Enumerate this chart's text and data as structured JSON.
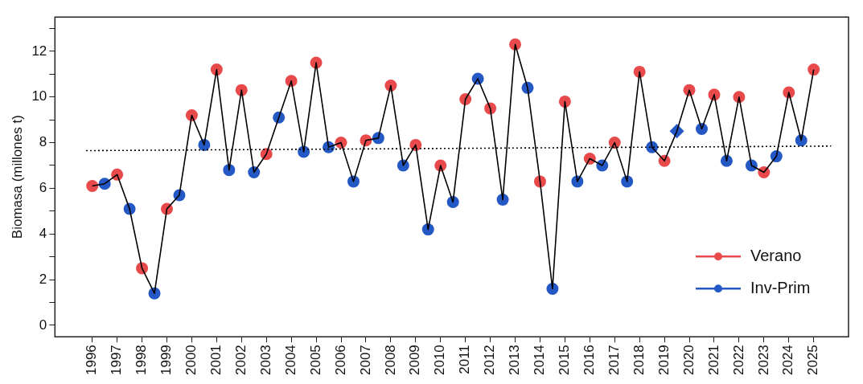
{
  "chart_data": {
    "type": "line",
    "ylabel": "Biomasa (millones t)",
    "xlim": [
      1994.5,
      2026.4
    ],
    "ylim": [
      -0.5,
      13.5
    ],
    "xticks": [
      1996,
      1997,
      1998,
      1999,
      2000,
      2001,
      2002,
      2003,
      2004,
      2005,
      2006,
      2007,
      2008,
      2009,
      2010,
      2011,
      2012,
      2013,
      2014,
      2015,
      2016,
      2017,
      2018,
      2019,
      2020,
      2021,
      2022,
      2023,
      2024,
      2025
    ],
    "yticks": [
      0,
      {
        "value": 1,
        "label": null
      },
      2,
      {
        "value": 3,
        "label": null
      },
      4,
      {
        "value": 5,
        "label": null
      },
      6,
      {
        "value": 7,
        "label": null
      },
      8,
      {
        "value": 9,
        "label": null
      },
      10,
      {
        "value": 11,
        "label": null
      },
      12,
      {
        "value": 13,
        "label": null
      }
    ],
    "grid": false,
    "legend": "bottom right",
    "series": [
      {
        "type": "line",
        "color": "#000000",
        "marker": "none",
        "line_style": "solid",
        "x": [
          1996,
          1996.5,
          1997,
          1997.5,
          1998,
          1998.5,
          1999,
          1999.5,
          2000,
          2000.5,
          2001,
          2001.5,
          2002,
          2002.5,
          2003,
          2003.5,
          2004,
          2004.5,
          2005,
          2005.5,
          2006,
          2006.5,
          2007,
          2007.5,
          2008,
          2008.5,
          2009,
          2009.5,
          2010,
          2010.5,
          2011,
          2011.5,
          2012,
          2012.5,
          2013,
          2013.5,
          2014,
          2014.5,
          2015,
          2015.5,
          2016,
          2016.5,
          2017,
          2017.5,
          2018,
          2018.5,
          2019,
          2019.5,
          2020,
          2020.5,
          2021,
          2021.5,
          2022,
          2022.5,
          2023,
          2023.5,
          2024,
          2024.5,
          2025
        ],
        "values": [
          6.1,
          6.2,
          6.6,
          5.1,
          2.5,
          1.4,
          5.1,
          5.7,
          9.2,
          7.9,
          11.2,
          6.8,
          10.3,
          6.7,
          7.5,
          9.1,
          10.7,
          7.6,
          11.5,
          7.8,
          8.0,
          6.3,
          8.1,
          8.2,
          10.5,
          7.0,
          7.9,
          4.2,
          7.0,
          5.4,
          9.9,
          10.8,
          9.5,
          5.5,
          12.3,
          10.4,
          6.3,
          1.6,
          9.8,
          6.3,
          7.3,
          7.0,
          8.0,
          6.3,
          11.1,
          7.8,
          7.2,
          8.5,
          10.3,
          8.6,
          10.1,
          7.2,
          10.0,
          7.0,
          6.7,
          7.4,
          10.2,
          8.1,
          11.2
        ]
      },
      {
        "type": "line",
        "color": "#000000",
        "marker": "none",
        "line_style": "dotted",
        "x": [
          1995.75,
          2025.7
        ],
        "values": [
          7.65,
          7.85
        ]
      },
      {
        "type": "scatter",
        "name": "Verano",
        "color": "#e84a4c",
        "marker": "circle",
        "x": [
          1996,
          1997,
          1998,
          1999,
          2000,
          2001,
          2002,
          2003,
          2004,
          2005,
          2006,
          2007,
          2008,
          2009,
          2010,
          2011,
          2012,
          2013,
          2014,
          2015,
          2016,
          2017,
          2018,
          2019,
          2020,
          2021,
          2022,
          2023,
          2024,
          2025
        ],
        "values": [
          6.1,
          6.6,
          2.5,
          5.1,
          9.2,
          11.2,
          10.3,
          7.5,
          10.7,
          11.5,
          8.0,
          8.1,
          10.5,
          7.9,
          7.0,
          9.9,
          9.5,
          12.3,
          6.3,
          9.8,
          7.3,
          8.0,
          11.1,
          7.2,
          10.3,
          10.1,
          10.0,
          6.7,
          10.2,
          11.2
        ]
      },
      {
        "type": "scatter",
        "name": "Inv-Prim",
        "color": "#2458c4",
        "marker": "circle",
        "x": [
          1996.5,
          1997.5,
          1998.5,
          1999.5,
          2000.5,
          2001.5,
          2002.5,
          2003.5,
          2004.5,
          2005.5,
          2006.5,
          2007.5,
          2008.5,
          2009.5,
          2010.5,
          2011.5,
          2012.5,
          2013.5,
          2014.5,
          2015.5,
          2016.5,
          2017.5,
          2018.5,
          2019.5,
          2020.5,
          2021.5,
          2022.5,
          2023.5,
          2024.5
        ],
        "values": [
          6.2,
          5.1,
          1.4,
          5.7,
          7.9,
          6.8,
          6.7,
          9.1,
          7.6,
          7.8,
          6.3,
          8.2,
          7.0,
          4.2,
          5.4,
          10.8,
          5.5,
          10.4,
          1.6,
          6.3,
          7.0,
          6.3,
          7.8,
          null,
          8.6,
          7.2,
          7.0,
          7.4,
          8.1
        ]
      },
      {
        "type": "scatter",
        "color": "#2458c4",
        "marker": "diamond",
        "x": [
          2019.5
        ],
        "values": [
          8.5
        ]
      }
    ]
  }
}
